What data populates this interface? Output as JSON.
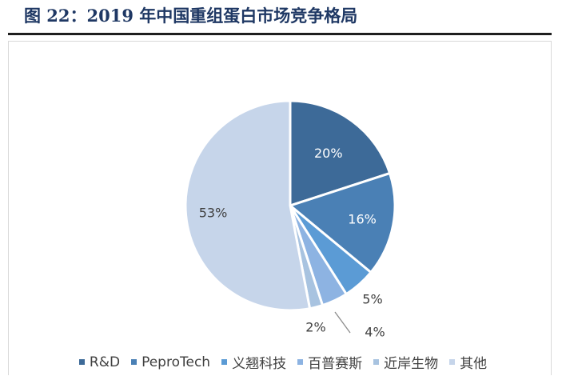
{
  "figure_title": "图 22：2019 年中国重组蛋白市场竞争格局",
  "chart_data": {
    "type": "pie",
    "title": "",
    "categories": [
      "R&D",
      "PeproTech",
      "义翘科技",
      "百普赛斯",
      "近岸生物",
      "其他"
    ],
    "values": [
      20,
      16,
      5,
      4,
      2,
      53
    ],
    "labels": [
      "20%",
      "16%",
      "5%",
      "4%",
      "2%",
      "53%"
    ],
    "colors": [
      "#3d6a98",
      "#4a80b5",
      "#5b9bd5",
      "#8db3e2",
      "#a8c3e0",
      "#c6d5ea"
    ],
    "legend_position": "bottom"
  }
}
